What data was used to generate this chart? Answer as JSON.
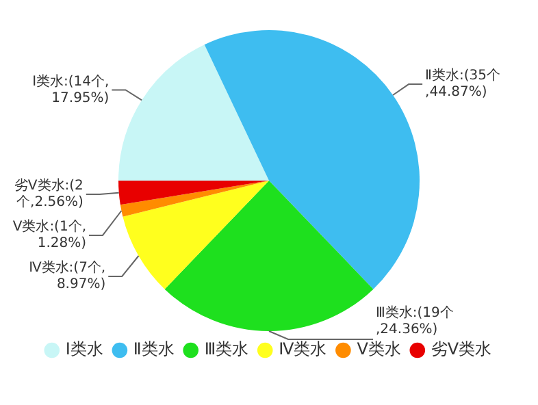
{
  "chart_data": {
    "type": "pie",
    "categories": [
      "Ⅰ类水",
      "Ⅱ类水",
      "Ⅲ类水",
      "Ⅳ类水",
      "Ⅴ类水",
      "劣Ⅴ类水"
    ],
    "values": [
      14,
      35,
      19,
      7,
      1,
      2
    ],
    "colors": [
      "#c8f6f6",
      "#3ebdf0",
      "#1ee01e",
      "#ffff1e",
      "#ff8c00",
      "#e80000"
    ],
    "value_labels": [
      "Ⅰ类水:(14个,17.95%)",
      "Ⅱ类水:(35个,44.87%)",
      "Ⅲ类水:(19个,24.36%)",
      "Ⅳ类水:(7个,8.97%)",
      "Ⅴ类水:(1个,1.28%)",
      "劣Ⅴ类水:(2个,2.56%)"
    ],
    "legend": "bottom"
  }
}
